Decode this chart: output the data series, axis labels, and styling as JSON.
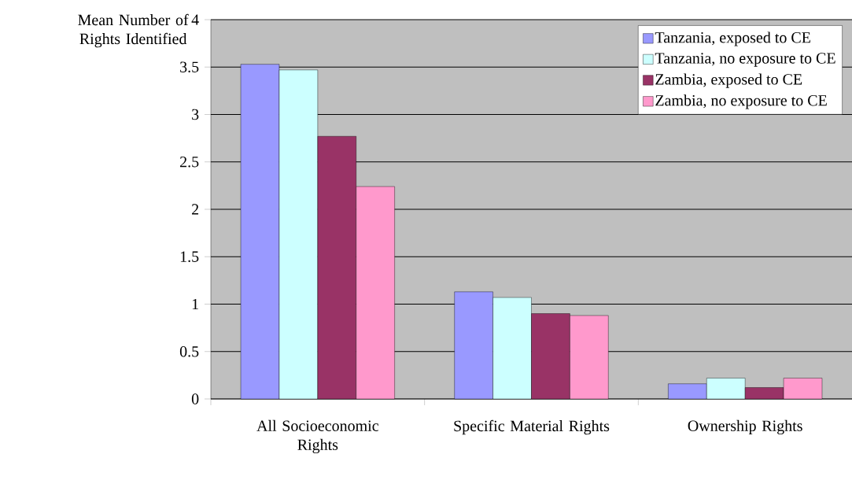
{
  "chart_data": {
    "type": "bar",
    "ylabel": "Mean Number of Rights Identified",
    "categories": [
      "All Socioeconomic Rights",
      "Specific Material Rights",
      "Ownership Rights"
    ],
    "series": [
      {
        "name": "Tanzania, exposed to CE",
        "color": "#9999ff",
        "values": [
          3.53,
          1.13,
          0.16
        ]
      },
      {
        "name": "Tanzania, no exposure to CE",
        "color": "#ccffff",
        "values": [
          3.47,
          1.07,
          0.22
        ]
      },
      {
        "name": "Zambia, exposed to CE",
        "color": "#993366",
        "values": [
          2.77,
          0.9,
          0.12
        ]
      },
      {
        "name": "Zambia, no exposure to CE",
        "color": "#ff99cc",
        "values": [
          2.24,
          0.88,
          0.22
        ]
      }
    ],
    "ylim": [
      0,
      4
    ],
    "yticks": [
      0,
      0.5,
      1,
      1.5,
      2,
      2.5,
      3,
      3.5,
      4
    ],
    "grid": "y",
    "legend": "top right"
  }
}
